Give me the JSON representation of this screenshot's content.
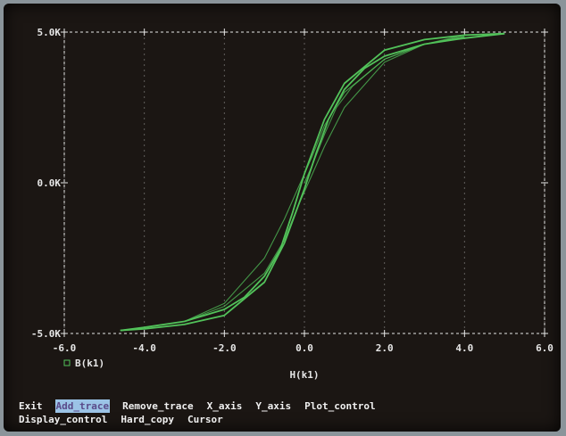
{
  "colors": {
    "background": "#1b1613",
    "trace": "#52c25a",
    "axis": "#e6e6e6",
    "menu_highlight": "#9bc3e6"
  },
  "menu": {
    "row1": [
      "Exit",
      "Add_trace",
      "Remove_trace",
      "X_axis",
      "Y_axis",
      "Plot_control"
    ],
    "row2": [
      "Display_control",
      "Hard_copy",
      "Cursor"
    ],
    "selected": "Add_trace"
  },
  "chart_data": {
    "type": "line",
    "title": "",
    "xlabel": "H(k1)",
    "ylabel": "",
    "xlim": [
      -6,
      6
    ],
    "ylim": [
      -5,
      5
    ],
    "grid": true,
    "x_tick_labels": [
      "-6.0",
      "-4.0",
      "-2.0",
      "0.0",
      "2.0",
      "4.0",
      "6.0"
    ],
    "y_tick_labels": [
      "5.0K",
      "0.0K",
      "-5.0K"
    ],
    "legend": [
      "B(k1)"
    ],
    "series": [
      {
        "name": "B(k1)",
        "segments": [
          {
            "id": "outer-upper",
            "x": [
              5.0,
              4.0,
              3.0,
              2.0,
              1.0,
              0.5,
              0.0,
              -0.3,
              -0.6,
              -1.0,
              -1.5,
              -2.0,
              -3.0,
              -4.0,
              -4.6
            ],
            "y": [
              4.95,
              4.9,
              4.75,
              4.4,
              3.3,
              2.1,
              0.3,
              -1.0,
              -2.2,
              -3.1,
              -3.8,
              -4.2,
              -4.6,
              -4.8,
              -4.9
            ]
          },
          {
            "id": "outer-lower",
            "x": [
              -4.6,
              -4.0,
              -3.0,
              -2.0,
              -1.0,
              -0.5,
              0.0,
              0.3,
              0.6,
              1.0,
              1.5,
              2.0,
              3.0,
              4.0,
              5.0
            ],
            "y": [
              -4.9,
              -4.85,
              -4.7,
              -4.4,
              -3.3,
              -2.0,
              -0.2,
              1.0,
              2.1,
              3.1,
              3.8,
              4.2,
              4.6,
              4.8,
              4.95
            ]
          },
          {
            "id": "inner-upper",
            "x": [
              4.0,
              3.0,
              2.0,
              1.0,
              0.5,
              0.2,
              0.0,
              -0.2,
              -0.5,
              -1.0,
              -2.0,
              -3.0
            ],
            "y": [
              4.85,
              4.6,
              4.0,
              2.5,
              1.2,
              0.3,
              -0.3,
              -0.9,
              -1.9,
              -3.0,
              -4.1,
              -4.6
            ]
          },
          {
            "id": "inner-lower",
            "x": [
              -3.0,
              -2.0,
              -1.0,
              -0.5,
              -0.2,
              0.0,
              0.2,
              0.5,
              1.0,
              2.0,
              3.0,
              4.0
            ],
            "y": [
              -4.6,
              -4.0,
              -2.5,
              -1.2,
              -0.3,
              0.3,
              0.9,
              1.9,
              3.0,
              4.1,
              4.6,
              4.85
            ]
          },
          {
            "id": "initial-curve",
            "x": [
              0.0,
              0.2,
              0.5,
              0.8,
              1.2,
              2.0,
              3.0,
              4.0
            ],
            "y": [
              0.0,
              0.6,
              1.6,
              2.5,
              3.2,
              4.1,
              4.6,
              4.9
            ]
          }
        ]
      }
    ]
  }
}
